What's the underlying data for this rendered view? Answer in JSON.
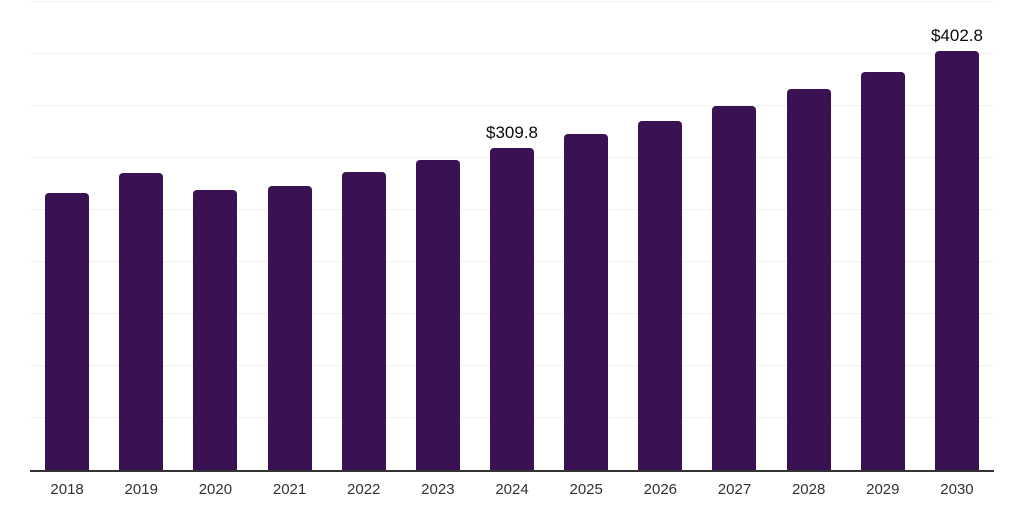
{
  "chart_data": {
    "type": "bar",
    "title": "",
    "xlabel": "",
    "ylabel": "",
    "categories": [
      "2018",
      "2019",
      "2020",
      "2021",
      "2022",
      "2023",
      "2024",
      "2025",
      "2026",
      "2027",
      "2028",
      "2029",
      "2030"
    ],
    "values": [
      266.6,
      285.4,
      269.4,
      273.5,
      286.2,
      298.3,
      309.8,
      323.2,
      335.7,
      350.0,
      366.4,
      382.6,
      402.8
    ],
    "data_labels": [
      "",
      "",
      "",
      "",
      "",
      "",
      "$309.8",
      "",
      "",
      "",
      "",
      "",
      "$402.8"
    ],
    "ylim": [
      0,
      450
    ],
    "gridline_step": 50,
    "grid": true,
    "legend": false,
    "y_axis_tick_labels_visible": false
  },
  "style": {
    "bar_color": "#3a1152",
    "grid_color": "#f0f0f0",
    "axis_color": "#333333",
    "tick_label_color": "#333333",
    "value_label_color": "#0a0a0a",
    "background": "#ffffff"
  }
}
